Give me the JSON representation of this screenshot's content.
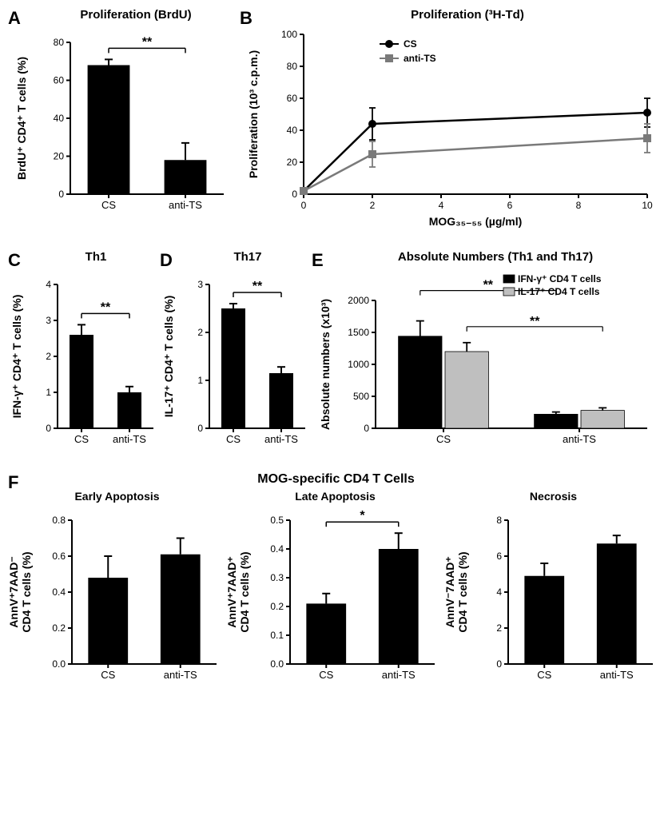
{
  "colors": {
    "bar_black": "#000000",
    "bar_grey": "#bfbfbf",
    "line_cs": "#000000",
    "line_anti": "#7a7a7a",
    "axis": "#000000",
    "bg": "#ffffff",
    "err": "#000000"
  },
  "global": {
    "err_cap": 4,
    "tick_len": 5
  },
  "A": {
    "label": "A",
    "title": "Proliferation (BrdU)",
    "type": "bar",
    "ylabel": "BrdU⁺ CD4⁺ T cells (%)",
    "ylim": [
      0,
      80
    ],
    "ytick_step": 20,
    "categories": [
      "CS",
      "anti-TS"
    ],
    "values": [
      68,
      18
    ],
    "errors": [
      3,
      9
    ],
    "bar_color": "#000000",
    "bar_width": 0.55,
    "sig": "**"
  },
  "B": {
    "label": "B",
    "title": "Proliferation (³H-Td)",
    "type": "line",
    "xlabel": "MOG₃₅₋₅₅ (µg/ml)",
    "ylabel": "Proliferation (10³ c.p.m.)",
    "xlim": [
      0,
      10
    ],
    "ylim": [
      0,
      100
    ],
    "xticks": [
      0,
      2,
      4,
      6,
      8,
      10
    ],
    "ytick_step": 20,
    "series": [
      {
        "name": "CS",
        "x": [
          0,
          2,
          10
        ],
        "y": [
          2,
          44,
          51
        ],
        "err": [
          1,
          10,
          9
        ],
        "color": "#000000",
        "marker": "circle"
      },
      {
        "name": "anti-TS",
        "x": [
          0,
          2,
          10
        ],
        "y": [
          2,
          25,
          35
        ],
        "err": [
          1,
          8,
          9
        ],
        "color": "#7a7a7a",
        "marker": "square"
      }
    ],
    "legend": [
      "CS",
      "anti-TS"
    ]
  },
  "C": {
    "label": "C",
    "title": "Th1",
    "type": "bar",
    "ylabel": "IFN-γ⁺ CD4⁺ T cells (%)",
    "ylim": [
      0,
      4
    ],
    "ytick_step": 1,
    "categories": [
      "CS",
      "anti-TS"
    ],
    "values": [
      2.6,
      1.0
    ],
    "errors": [
      0.28,
      0.16
    ],
    "bar_color": "#000000",
    "bar_width": 0.5,
    "sig": "**"
  },
  "D": {
    "label": "D",
    "title": "Th17",
    "type": "bar",
    "ylabel": "IL-17⁺ CD4⁺ T cells (%)",
    "ylim": [
      0,
      3
    ],
    "ytick_step": 1,
    "categories": [
      "CS",
      "anti-TS"
    ],
    "values": [
      2.5,
      1.15
    ],
    "errors": [
      0.1,
      0.13
    ],
    "bar_color": "#000000",
    "bar_width": 0.5,
    "sig": "**"
  },
  "E": {
    "label": "E",
    "title": "Absolute Numbers (Th1 and Th17)",
    "type": "grouped-bar",
    "ylabel": "Absolute numbers (x10³)",
    "ylim": [
      0,
      2000
    ],
    "ytick_step": 500,
    "groups": [
      "CS",
      "anti-TS"
    ],
    "series": [
      {
        "name": "IFN-γ⁺ CD4 T cells",
        "values": [
          1440,
          220
        ],
        "errors": [
          240,
          35
        ],
        "color": "#000000"
      },
      {
        "name": "IL-17⁺ CD4 T cells",
        "values": [
          1200,
          280
        ],
        "errors": [
          140,
          40
        ],
        "color": "#bfbfbf"
      }
    ],
    "bar_width": 0.32,
    "sig": [
      "**",
      "**"
    ]
  },
  "F": {
    "label": "F",
    "section_title": "MOG-specific CD4 T Cells",
    "panels": [
      {
        "title": "Early Apoptosis",
        "ylabel": "AnnV⁺7AAD⁻\nCD4 T cells (%)",
        "ylim": [
          0,
          0.8
        ],
        "ytick_step": 0.2,
        "categories": [
          "CS",
          "anti-TS"
        ],
        "values": [
          0.48,
          0.61
        ],
        "errors": [
          0.12,
          0.09
        ],
        "sig": ""
      },
      {
        "title": "Late Apoptosis",
        "ylabel": "AnnV⁺7AAD⁺\nCD4 T cells (%)",
        "ylim": [
          0,
          0.5
        ],
        "ytick_step": 0.1,
        "categories": [
          "CS",
          "anti-TS"
        ],
        "values": [
          0.21,
          0.4
        ],
        "errors": [
          0.035,
          0.055
        ],
        "sig": "*"
      },
      {
        "title": "Necrosis",
        "ylabel": "AnnV⁻7AAD⁺\nCD4 T cells (%)",
        "ylim": [
          0,
          8
        ],
        "ytick_step": 2,
        "categories": [
          "CS",
          "anti-TS"
        ],
        "values": [
          4.9,
          6.7
        ],
        "errors": [
          0.7,
          0.45
        ],
        "sig": ""
      }
    ],
    "bar_color": "#000000",
    "bar_width": 0.55
  }
}
